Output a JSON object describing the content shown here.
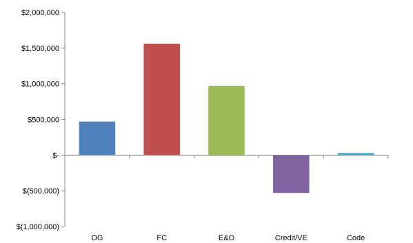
{
  "chart_data": {
    "type": "bar",
    "categories": [
      "OG",
      "FC",
      "E&O",
      "Credit/VE",
      "Code"
    ],
    "values": [
      470000,
      1560000,
      970000,
      -530000,
      30000
    ],
    "colors": [
      "#4f81bd",
      "#c0504d",
      "#9bbb59",
      "#8064a2",
      "#4bacc6"
    ],
    "ylim": [
      -1000000,
      2000000
    ],
    "y_ticks": [
      2000000,
      1500000,
      1000000,
      500000,
      0,
      -500000,
      -1000000
    ],
    "y_tick_labels": [
      "$2,000,000",
      "$1,500,000",
      "$1,000,000",
      "$500,000",
      "$-",
      "$(500,000)",
      "$(1,000,000)"
    ],
    "title": "",
    "xlabel": "",
    "ylabel": "",
    "grid": false,
    "legend": "none"
  }
}
